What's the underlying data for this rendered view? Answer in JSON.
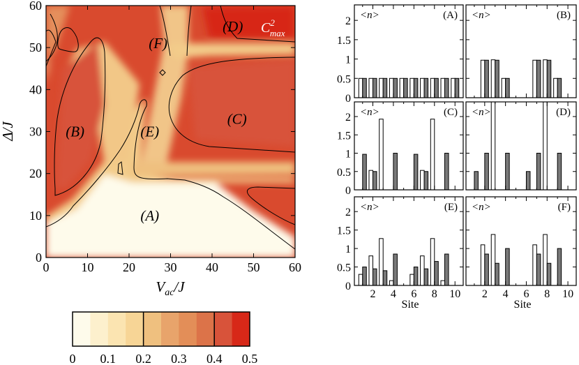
{
  "chart_data": [
    {
      "type": "heatmap",
      "title": "",
      "corner_label": "C",
      "corner_label_sup": "2",
      "corner_label_sub": "max",
      "xlabel": "V",
      "xlabel_sub": "ac",
      "xlabel_suffix": "/J",
      "ylabel": "Δ/J",
      "xlim": [
        0,
        60
      ],
      "ylim": [
        0,
        60
      ],
      "x_ticks": [
        "0",
        "10",
        "20",
        "30",
        "40",
        "50",
        "60"
      ],
      "y_ticks": [
        "0",
        "10",
        "20",
        "30",
        "40",
        "50",
        "60"
      ],
      "region_labels": [
        {
          "text": "(A)",
          "x": 25,
          "y": 10
        },
        {
          "text": "(B)",
          "x": 7,
          "y": 30
        },
        {
          "text": "(C)",
          "x": 46,
          "y": 33
        },
        {
          "text": "(D)",
          "x": 45,
          "y": 55
        },
        {
          "text": "(E)",
          "x": 25,
          "y": 30
        },
        {
          "text": "(F)",
          "x": 27,
          "y": 51
        }
      ],
      "contour_levels": [
        0.2,
        0.4
      ],
      "colorbar": {
        "min": 0,
        "max": 0.5,
        "ticks": [
          "0",
          "0.1",
          "0.2",
          "0.3",
          "0.4",
          "0.5"
        ],
        "colors": [
          "#fefbeb",
          "#fdf0cd",
          "#fbe4b1",
          "#f7d596",
          "#efc07f",
          "#e8a46b",
          "#e38e58",
          "#dc7349",
          "#d8533a",
          "#d72818"
        ]
      }
    },
    {
      "type": "bar",
      "panel": "(A)",
      "ylabel": "<n>",
      "categories": [
        1,
        2,
        3,
        4,
        5,
        6,
        7,
        8,
        9,
        10
      ],
      "series": [
        {
          "values": [
            0.5,
            0.5,
            0.5,
            0.5,
            0.5,
            0.5,
            0.5,
            0.5,
            0.5,
            0.5
          ]
        },
        {
          "values": [
            0.5,
            0.5,
            0.5,
            0.5,
            0.5,
            0.5,
            0.5,
            0.5,
            0.5,
            0.5
          ]
        }
      ]
    },
    {
      "type": "bar",
      "panel": "(B)",
      "ylabel": "<n>",
      "categories": [
        1,
        2,
        3,
        4,
        5,
        6,
        7,
        8,
        9,
        10
      ],
      "series": [
        {
          "values": [
            0,
            0.97,
            0.98,
            0.5,
            0,
            0,
            0.97,
            0.98,
            0.5,
            0
          ]
        },
        {
          "values": [
            0,
            0.97,
            0.97,
            0.5,
            0,
            0,
            0.97,
            0.97,
            0.5,
            0
          ]
        }
      ]
    },
    {
      "type": "bar",
      "panel": "(C)",
      "ylabel": "<n>",
      "categories": [
        1,
        2,
        3,
        4,
        5,
        6,
        7,
        8,
        9,
        10
      ],
      "series": [
        {
          "values": [
            0,
            0.53,
            1.93,
            0,
            0,
            0,
            0.53,
            1.93,
            0,
            0
          ]
        },
        {
          "values": [
            0.97,
            0.5,
            0,
            1.0,
            0,
            0.97,
            0.5,
            0,
            1.0,
            0
          ]
        }
      ]
    },
    {
      "type": "bar",
      "panel": "(D)",
      "ylabel": "<n>",
      "categories": [
        1,
        2,
        3,
        4,
        5,
        6,
        7,
        8,
        9,
        10
      ],
      "series": [
        {
          "values": [
            0,
            0,
            2.5,
            0,
            0,
            0,
            0,
            2.5,
            0,
            0
          ]
        },
        {
          "values": [
            0.5,
            1.0,
            0,
            1.0,
            0,
            0.5,
            1.0,
            0,
            1.0,
            0
          ]
        }
      ]
    },
    {
      "type": "bar",
      "panel": "(E)",
      "ylabel": "<n>",
      "categories": [
        1,
        2,
        3,
        4,
        5,
        6,
        7,
        8,
        9,
        10
      ],
      "series": [
        {
          "values": [
            0.3,
            0.8,
            1.27,
            0.13,
            0,
            0.3,
            0.8,
            1.27,
            0.13,
            0
          ]
        },
        {
          "values": [
            0.5,
            0.45,
            0.4,
            0.85,
            0,
            0.5,
            0.45,
            0.65,
            0.85,
            0
          ]
        }
      ]
    },
    {
      "type": "bar",
      "panel": "(F)",
      "ylabel": "<n>",
      "categories": [
        1,
        2,
        3,
        4,
        5,
        6,
        7,
        8,
        9,
        10
      ],
      "series": [
        {
          "values": [
            0,
            1.1,
            1.38,
            0,
            0,
            0,
            1.1,
            1.38,
            0,
            0
          ]
        },
        {
          "values": [
            0,
            0.85,
            0.6,
            1.0,
            0,
            0,
            0.85,
            0.6,
            1.0,
            0
          ]
        }
      ]
    }
  ],
  "bar_panels": {
    "ylim": [
      0,
      2.4
    ],
    "y_ticks": [
      "0",
      "0.5",
      "1",
      "1.5",
      "2"
    ],
    "x_ticks": [
      "2",
      "4",
      "6",
      "8",
      "10"
    ],
    "xlabel": "Site"
  }
}
